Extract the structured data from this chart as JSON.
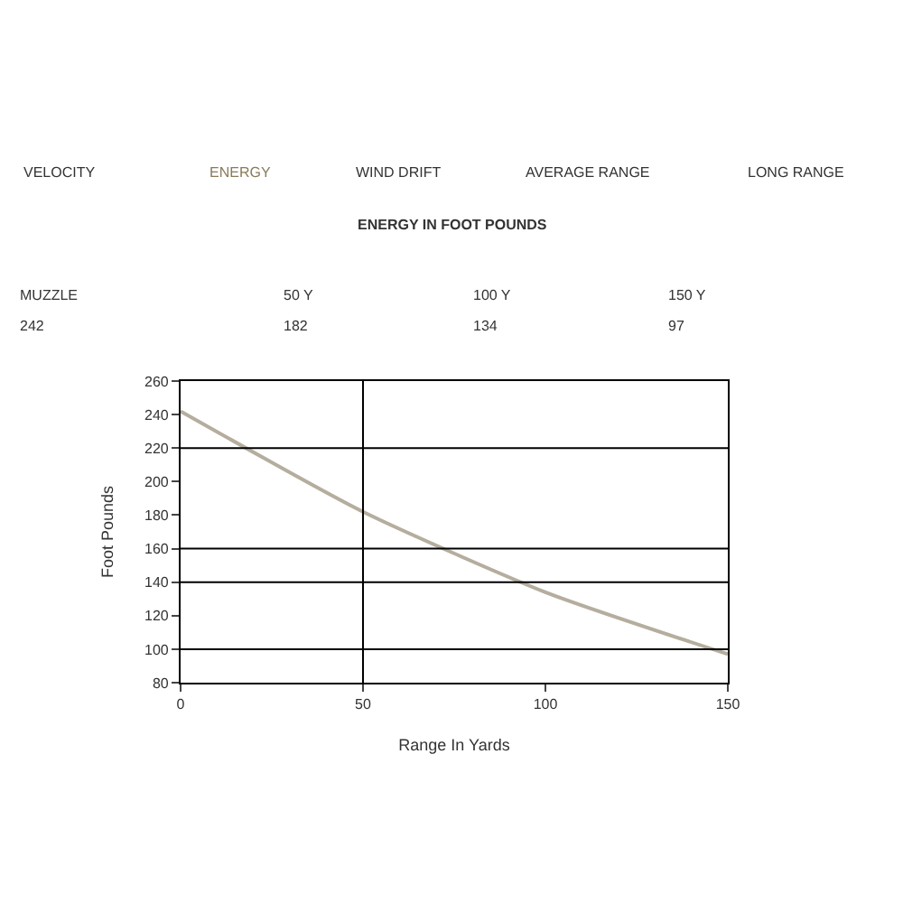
{
  "chart_data": {
    "type": "line",
    "xlabel": "Range In Yards",
    "ylabel": "Foot Pounds",
    "x": [
      0,
      50,
      100,
      150
    ],
    "series": [
      {
        "color": "#b5ad9e",
        "values": [
          242,
          182,
          134,
          97
        ]
      }
    ],
    "xlim": [
      0,
      150
    ],
    "xticks": [
      0,
      50,
      100,
      150
    ],
    "ylim": [
      80,
      260
    ],
    "yticks": [
      80,
      100,
      120,
      140,
      160,
      180,
      200,
      220,
      240,
      260
    ],
    "marker": "none",
    "line_style": "solid",
    "ref_lines": [
      {
        "axis": "x",
        "value": 50
      },
      {
        "axis": "y",
        "value": 100
      },
      {
        "axis": "y",
        "value": 140
      },
      {
        "axis": "y",
        "value": 160
      },
      {
        "axis": "y",
        "value": 220
      }
    ],
    "annotations": [
      "VELOCITY",
      "ENERGY",
      "WIND DRIFT",
      "AVERAGE RANGE",
      "LONG RANGE",
      "ENERGY IN FOOT POUNDS",
      "MUZZLE",
      "50 Y",
      "100 Y",
      "150 Y",
      "242",
      "182",
      "134",
      "97"
    ]
  }
}
